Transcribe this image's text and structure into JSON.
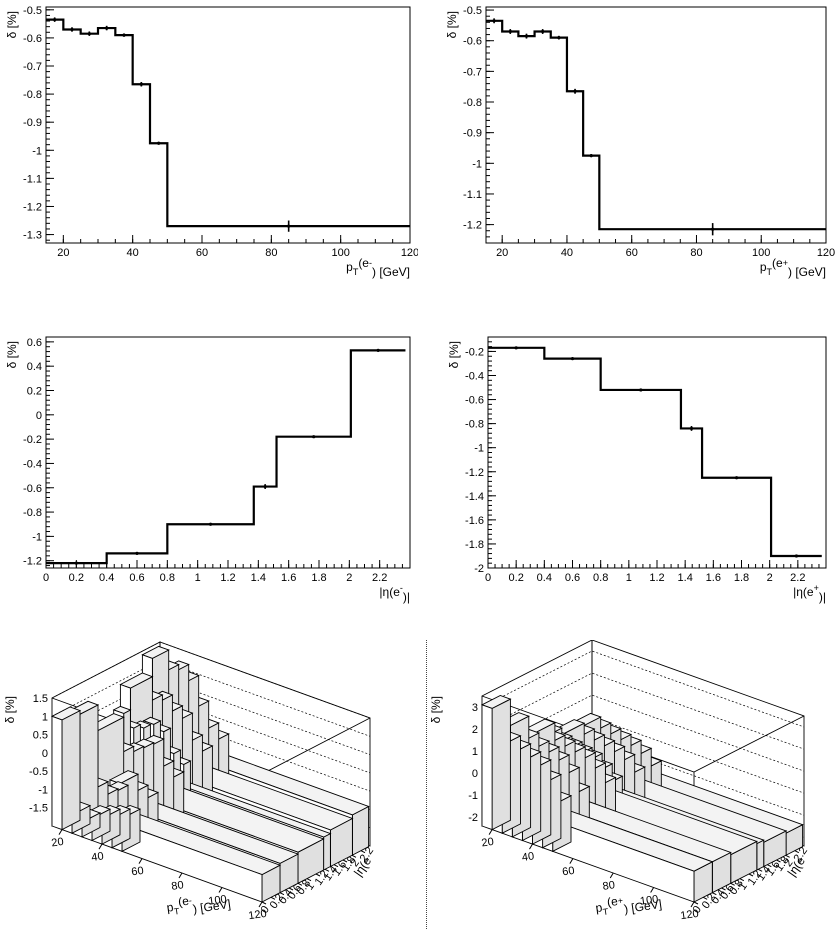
{
  "chart_data": [
    {
      "id": "p1",
      "type": "line",
      "xlabel_main": "p",
      "xlabel_sub": "T",
      "xlabel_rest": "(e",
      "xlabel_sup": "-",
      "xlabel_end": ") [GeV]",
      "ylabel": "δ [%]",
      "xlim": [
        15,
        120
      ],
      "ylim": [
        -1.33,
        -0.49
      ],
      "xticks": [
        20,
        40,
        60,
        80,
        100,
        120
      ],
      "yticks": [
        -0.5,
        -0.6,
        -0.7,
        -0.8,
        -0.9,
        -1,
        -1.1,
        -1.2,
        -1.3
      ],
      "edges": [
        15,
        20,
        25,
        30,
        35,
        40,
        45,
        50,
        120
      ],
      "values": [
        -0.535,
        -0.57,
        -0.585,
        -0.565,
        -0.59,
        -0.765,
        -0.975,
        -1.27
      ],
      "errors": [
        0.008,
        0.008,
        0.008,
        0.008,
        0.006,
        0.008,
        0.005,
        0.02
      ]
    },
    {
      "id": "p2",
      "type": "line",
      "xlabel_main": "p",
      "xlabel_sub": "T",
      "xlabel_rest": "(e",
      "xlabel_sup": "+",
      "xlabel_end": ") [GeV]",
      "ylabel": "δ [%]",
      "xlim": [
        15,
        120
      ],
      "ylim": [
        -1.26,
        -0.49
      ],
      "xticks": [
        20,
        40,
        60,
        80,
        100,
        120
      ],
      "yticks": [
        -0.5,
        -0.6,
        -0.7,
        -0.8,
        -0.9,
        -1,
        -1.1,
        -1.2
      ],
      "edges": [
        15,
        20,
        25,
        30,
        35,
        40,
        45,
        50,
        120
      ],
      "values": [
        -0.535,
        -0.57,
        -0.585,
        -0.57,
        -0.59,
        -0.765,
        -0.975,
        -1.215
      ],
      "errors": [
        0.008,
        0.008,
        0.008,
        0.008,
        0.006,
        0.008,
        0.005,
        0.02
      ]
    },
    {
      "id": "p3",
      "type": "line",
      "xlabel_main": "|η(e",
      "xlabel_sub": "",
      "xlabel_rest": "",
      "xlabel_sup": "-",
      "xlabel_end": ")|",
      "ylabel": "δ [%]",
      "xlim": [
        0,
        2.4
      ],
      "ylim": [
        -1.26,
        0.64
      ],
      "xticks": [
        0,
        0.2,
        0.4,
        0.6,
        0.8,
        1,
        1.2,
        1.4,
        1.6,
        1.8,
        2,
        2.2
      ],
      "yticks": [
        0.6,
        0.4,
        0.2,
        0,
        -0.2,
        -0.4,
        -0.6,
        -0.8,
        -1,
        -1.2
      ],
      "edges": [
        0,
        0.4,
        0.8,
        1.37,
        1.52,
        2.01,
        2.37
      ],
      "values": [
        -1.22,
        -1.14,
        -0.9,
        -0.59,
        -0.18,
        0.53
      ],
      "errors": [
        0.01,
        0.01,
        0.01,
        0.02,
        0.01,
        0.01
      ]
    },
    {
      "id": "p4",
      "type": "line",
      "xlabel_main": "|η(e",
      "xlabel_sub": "",
      "xlabel_rest": "",
      "xlabel_sup": "+",
      "xlabel_end": ")|",
      "ylabel": "δ [%]",
      "xlim": [
        0,
        2.4
      ],
      "ylim": [
        -2.0,
        -0.08
      ],
      "xticks": [
        0,
        0.2,
        0.4,
        0.6,
        0.8,
        1,
        1.2,
        1.4,
        1.6,
        1.8,
        2,
        2.2
      ],
      "yticks": [
        -0.2,
        -0.4,
        -0.6,
        -0.8,
        -1,
        -1.2,
        -1.4,
        -1.6,
        -1.8,
        -2
      ],
      "edges": [
        0,
        0.4,
        0.8,
        1.37,
        1.52,
        2.01,
        2.37
      ],
      "values": [
        -0.17,
        -0.26,
        -0.52,
        -0.84,
        -1.25,
        -1.9
      ],
      "errors": [
        0.01,
        0.01,
        0.01,
        0.02,
        0.01,
        0.01
      ]
    },
    {
      "id": "p5",
      "type": "bar3d",
      "xlabel_main": "p",
      "xlabel_sub": "T",
      "xlabel_rest": "(e",
      "xlabel_sup": "-",
      "xlabel_end": ") [GeV]",
      "ylabel": "δ [%]",
      "eta_label": "|η(e",
      "ylim": [
        -2,
        1.5
      ],
      "xticks": [
        20,
        40,
        60,
        80,
        100,
        120
      ],
      "yticks": [
        1.5,
        1,
        0.5,
        0,
        -0.5,
        -1,
        -1.5
      ],
      "eta_ticks": [
        "0",
        "0.2",
        "0.4",
        "0.6",
        "0.8",
        "1",
        "1.2",
        "1.4",
        "1.6",
        "1.8",
        "2",
        "2.2"
      ],
      "pt_edges": [
        15,
        20,
        25,
        30,
        35,
        40,
        45,
        50,
        120
      ],
      "eta_edges": [
        0,
        0.4,
        0.8,
        1.37,
        1.52,
        2.01,
        2.37
      ],
      "values": [
        [
          1.0,
          -1.5,
          -1.6,
          -1.4,
          -1.3,
          -1.2,
          -1.1,
          -1.25
        ],
        [
          0.9,
          -1.1,
          -1.2,
          -1.0,
          -0.6,
          -0.8,
          -0.9,
          -1.2
        ],
        [
          0.2,
          -0.5,
          -0.4,
          -0.2,
          0.0,
          -0.5,
          -0.7,
          -1.15
        ],
        [
          0.3,
          0.0,
          0.1,
          0.3,
          0.2,
          -0.3,
          -0.5,
          -1.1
        ],
        [
          0.9,
          0.5,
          0.6,
          0.4,
          0.3,
          -0.2,
          -0.4,
          -1.0
        ],
        [
          1.4,
          1.1,
          1.2,
          1.0,
          0.4,
          -0.1,
          -0.3,
          -0.9
        ]
      ]
    },
    {
      "id": "p6",
      "type": "bar3d",
      "xlabel_main": "p",
      "xlabel_sub": "T",
      "xlabel_rest": "(e",
      "xlabel_sup": "+",
      "xlabel_end": ") [GeV]",
      "ylabel": "δ [%]",
      "eta_label": "|η(e",
      "ylim": [
        -2.4,
        3.5
      ],
      "xticks": [
        20,
        40,
        60,
        80,
        100,
        120
      ],
      "yticks": [
        3,
        2,
        1,
        0,
        -1,
        -2
      ],
      "eta_ticks": [
        "0",
        "0.2",
        "0.4",
        "0.6",
        "0.8",
        "1",
        "1.2",
        "1.4",
        "1.6",
        "1.8",
        "2",
        "2.2"
      ],
      "pt_edges": [
        15,
        20,
        25,
        30,
        35,
        40,
        45,
        50,
        120
      ],
      "eta_edges": [
        0,
        0.4,
        0.8,
        1.37,
        1.52,
        2.01,
        2.37
      ],
      "values": [
        [
          3.1,
          1.6,
          1.4,
          1.2,
          1.0,
          0.5,
          -0.3,
          -1.0
        ],
        [
          1.9,
          1.3,
          1.1,
          1.0,
          0.8,
          0.4,
          -0.3,
          -1.0
        ],
        [
          1.0,
          0.6,
          0.5,
          0.4,
          0.3,
          0.0,
          -0.5,
          -1.1
        ],
        [
          0.6,
          0.4,
          0.3,
          0.2,
          0.1,
          -0.2,
          -0.6,
          -1.2
        ],
        [
          0.3,
          0.2,
          0.1,
          0.0,
          -0.1,
          -0.3,
          -0.7,
          -1.3
        ],
        [
          0.2,
          0.1,
          0.0,
          -0.1,
          -0.2,
          -0.4,
          -0.8,
          -1.4
        ]
      ]
    }
  ]
}
